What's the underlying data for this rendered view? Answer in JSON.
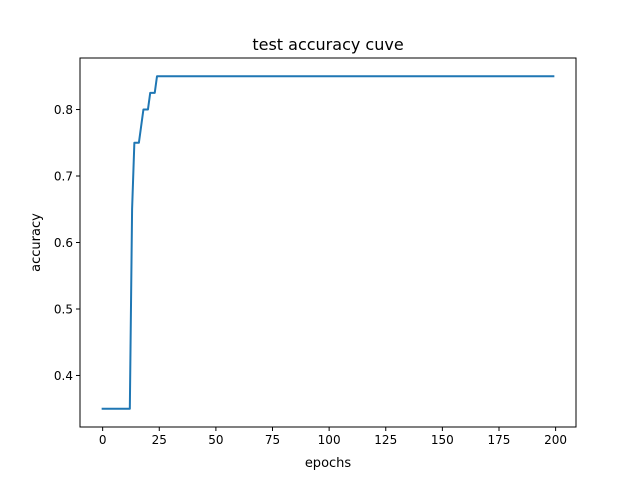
{
  "chart_data": {
    "type": "line",
    "title": "test accuracy cuve",
    "xlabel": "epochs",
    "ylabel": "accuracy",
    "xlim": [
      -10,
      209
    ],
    "ylim": [
      0.3225,
      0.8775
    ],
    "xticks": [
      0,
      25,
      50,
      75,
      100,
      125,
      150,
      175,
      200
    ],
    "yticks": [
      0.4,
      0.5,
      0.6,
      0.7,
      0.8
    ],
    "ytick_labels": [
      "0.4",
      "0.5",
      "0.6",
      "0.7",
      "0.8"
    ],
    "grid": false,
    "legend": "none",
    "series": [
      {
        "color": "#1f77b4",
        "points": [
          [
            0,
            0.35
          ],
          [
            12,
            0.35
          ],
          [
            13,
            0.65
          ],
          [
            14,
            0.75
          ],
          [
            16,
            0.75
          ],
          [
            18,
            0.8
          ],
          [
            20,
            0.8
          ],
          [
            21,
            0.825
          ],
          [
            23,
            0.825
          ],
          [
            24,
            0.85
          ],
          [
            199,
            0.85
          ]
        ]
      }
    ]
  }
}
